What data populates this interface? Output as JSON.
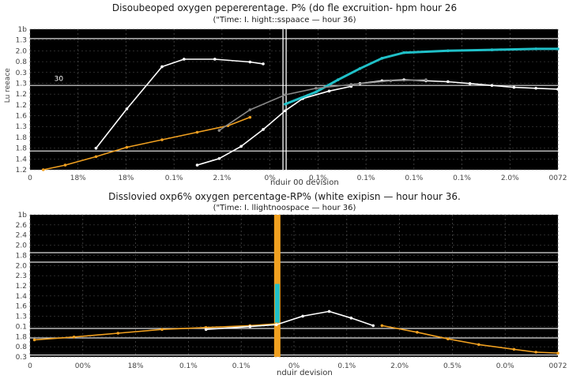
{
  "chart_data": [
    {
      "type": "line",
      "title": "Disoubeoped oxygen pepererentage. P% (do fle excruition- hpm hour 26",
      "subtitle": "(\"Time: I. hight::sspaace — hour 36)",
      "xlabel": "nduir 00 devision",
      "ylabel": "",
      "xlim": [
        0,
        12
      ],
      "ylim": [
        0,
        15
      ],
      "x_tick_labels": [
        "0",
        "18%",
        "18%",
        "0.1%",
        "2.1%",
        "0%",
        "0.1%",
        "0.1%",
        "0.1%",
        "0.1%",
        "2.0%",
        "0072"
      ],
      "y_tick_labels": [
        "1b",
        "1.3",
        "2.0",
        "0.8",
        "0.3",
        "1.3",
        "1.2",
        "1.2",
        "1.6",
        "1.3",
        "1.8",
        "1.8",
        "1.4",
        "1.2"
      ],
      "y_axis_text": "Lu reeace",
      "annotation": "30",
      "hlines": [
        2,
        9,
        14
      ],
      "vline_x": 5.75,
      "colors": {
        "background": "#000000",
        "orange": "#f0a020",
        "cyan": "#20c0c8",
        "white": "#ffffff",
        "grid": "#555555"
      },
      "series": [
        {
          "color": "#f0a020",
          "x": [
            0.3,
            0.8,
            1.5,
            2.2,
            3.0,
            3.8,
            4.5,
            5.0
          ],
          "y": [
            0.0,
            0.5,
            1.4,
            2.4,
            3.2,
            4.0,
            4.7,
            5.6
          ]
        },
        {
          "color": "#ffffff",
          "x": [
            1.5,
            2.2,
            3.0,
            3.5,
            4.2,
            5.0,
            5.3
          ],
          "y": [
            2.3,
            6.5,
            11.0,
            11.8,
            11.8,
            11.5,
            11.3
          ]
        },
        {
          "color": "#ffffff",
          "x": [
            3.8,
            4.3,
            4.8,
            5.3,
            5.8,
            6.2,
            6.8,
            7.3
          ],
          "y": [
            0.5,
            1.2,
            2.5,
            4.3,
            6.3,
            7.6,
            8.4,
            8.9
          ]
        },
        {
          "color": "#20c0c8",
          "x": [
            5.8,
            6.5,
            7.0,
            7.5,
            8.0,
            8.5,
            9.5,
            10.5,
            11.5,
            12.0
          ],
          "y": [
            7.0,
            8.3,
            9.6,
            10.8,
            11.9,
            12.5,
            12.7,
            12.8,
            12.9,
            12.9
          ]
        },
        {
          "color": "#ffffff",
          "x": [
            7.5,
            8.0,
            8.5,
            9.0,
            9.5,
            10.0,
            10.5,
            11.0,
            11.5,
            12.0
          ],
          "y": [
            9.2,
            9.5,
            9.6,
            9.5,
            9.4,
            9.2,
            9.0,
            8.8,
            8.7,
            8.6
          ]
        },
        {
          "color": "#888888",
          "x": [
            4.3,
            5.0,
            5.8,
            6.5,
            7.3,
            8.2,
            9.0
          ],
          "y": [
            4.2,
            6.4,
            8.0,
            8.7,
            9.1,
            9.5,
            9.6
          ]
        }
      ]
    },
    {
      "type": "line",
      "title": "Disslovied oxp6% oxygen percentage-RP% (white exipisn — hour hour 36.",
      "subtitle": "(\"Time: I. llightnoospace — hour 36)",
      "xlabel": "nduir devision",
      "ylabel": "",
      "xlim": [
        0,
        12
      ],
      "ylim": [
        0,
        15
      ],
      "x_tick_labels": [
        "0",
        "00%",
        "18%",
        "0.1%",
        "0.1%",
        "0%",
        "0.1%",
        "2.0%",
        "0.5%",
        "0.0%",
        "0072"
      ],
      "y_tick_labels": [
        "1b",
        "2.6",
        "2.4",
        "2.0",
        "1.8",
        "2.0",
        "2.3",
        "1.2",
        "1.4",
        "1.6",
        "1.3",
        "0.1",
        "1.8",
        "0.8",
        "0.3"
      ],
      "hlines": [
        0.2,
        2.0,
        3.0,
        10.0,
        11.0
      ],
      "bar": {
        "x": 5.62,
        "y_top": 15.0,
        "y_bottom": 0.0,
        "color": "#f0a020"
      },
      "bar_cyan": {
        "x": 5.62,
        "y_top": 7.7,
        "y_bottom": 3.6,
        "color": "#20c0c8"
      },
      "colors": {
        "background": "#000000",
        "orange": "#f0a020",
        "cyan": "#20c0c8",
        "white": "#ffffff",
        "grid": "#555555"
      },
      "series": [
        {
          "color": "#f0a020",
          "x": [
            0.1,
            1.0,
            2.0,
            3.0,
            4.0,
            5.0,
            5.6
          ],
          "y": [
            1.8,
            2.1,
            2.5,
            2.9,
            3.1,
            3.3,
            3.5
          ]
        },
        {
          "color": "#ffffff",
          "x": [
            4.0,
            5.0,
            5.6,
            6.2,
            6.8,
            7.3,
            7.8
          ],
          "y": [
            2.9,
            3.2,
            3.4,
            4.3,
            4.8,
            4.1,
            3.3
          ]
        },
        {
          "color": "#f0a020",
          "x": [
            8.0,
            8.8,
            9.5,
            10.2,
            11.0,
            11.5,
            12.0
          ],
          "y": [
            3.3,
            2.6,
            1.9,
            1.3,
            0.8,
            0.5,
            0.4
          ]
        }
      ]
    }
  ]
}
